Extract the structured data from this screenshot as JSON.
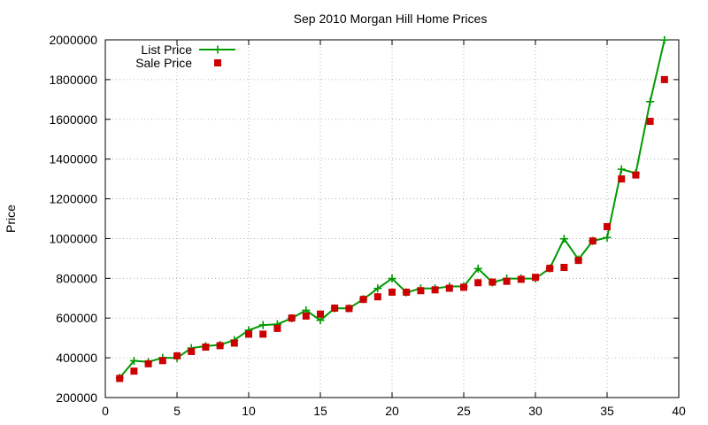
{
  "chart_data": {
    "type": "line",
    "title": "Sep 2010 Morgan Hill Home Prices",
    "xlabel": "",
    "ylabel": "Price",
    "xlim": [
      0,
      40
    ],
    "ylim": [
      200000,
      2000000
    ],
    "x_ticks": [
      0,
      5,
      10,
      15,
      20,
      25,
      30,
      35,
      40
    ],
    "y_ticks": [
      200000,
      400000,
      600000,
      800000,
      1000000,
      1200000,
      1400000,
      1600000,
      1800000,
      2000000
    ],
    "grid": true,
    "legend_position": "top-left",
    "series": [
      {
        "name": "List Price",
        "style": "linespoints",
        "marker": "plus",
        "color": "#009900",
        "x": [
          1,
          2,
          3,
          4,
          5,
          6,
          7,
          8,
          9,
          10,
          11,
          12,
          13,
          14,
          15,
          16,
          17,
          18,
          19,
          20,
          21,
          22,
          23,
          24,
          25,
          26,
          27,
          28,
          29,
          30,
          31,
          32,
          33,
          34,
          35,
          36,
          37,
          38,
          39
        ],
        "values": [
          299000,
          385000,
          379000,
          400000,
          399000,
          449000,
          459000,
          465000,
          489000,
          539000,
          565000,
          569000,
          599000,
          639000,
          589000,
          649000,
          649000,
          695000,
          749000,
          799000,
          729000,
          749000,
          749000,
          759000,
          759000,
          849000,
          779000,
          799000,
          799000,
          799000,
          850000,
          999000,
          895000,
          988000,
          1005000,
          1349000,
          1329000,
          1689000,
          1999000
        ]
      },
      {
        "name": "Sale Price",
        "style": "points",
        "marker": "square",
        "color": "#cc0000",
        "x": [
          1,
          2,
          3,
          4,
          5,
          6,
          7,
          8,
          9,
          10,
          11,
          12,
          13,
          14,
          15,
          16,
          17,
          18,
          19,
          20,
          21,
          22,
          23,
          24,
          25,
          26,
          27,
          28,
          29,
          30,
          31,
          32,
          33,
          34,
          35,
          36,
          37,
          38,
          39
        ],
        "values": [
          296000,
          333000,
          370000,
          386000,
          410000,
          432000,
          454000,
          461000,
          474000,
          519000,
          519000,
          548000,
          600000,
          610000,
          620000,
          650000,
          648000,
          694000,
          707000,
          730000,
          730000,
          738000,
          742000,
          750000,
          755000,
          778000,
          781000,
          785000,
          795000,
          805000,
          850000,
          855000,
          890000,
          988000,
          1060000,
          1300000,
          1320000,
          1590000,
          1800000
        ]
      }
    ]
  }
}
